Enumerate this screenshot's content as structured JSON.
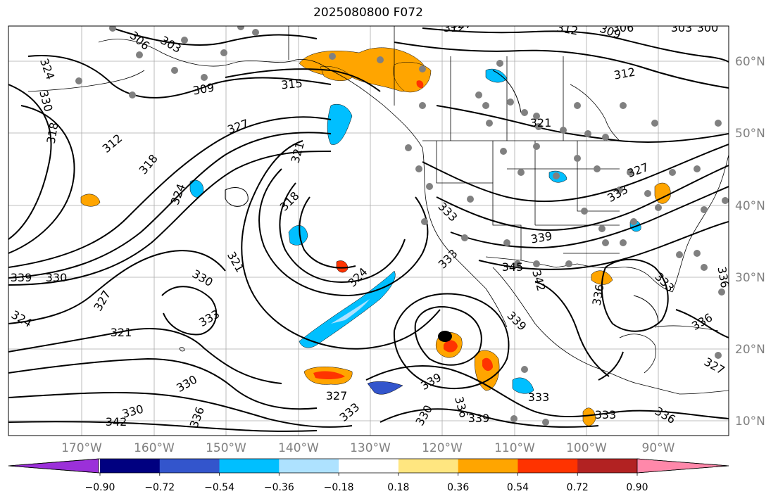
{
  "title": "2025080800 F072",
  "longitude_labels": [
    "170°W",
    "160°W",
    "150°W",
    "140°W",
    "130°W",
    "120°W",
    "110°W",
    "100°W",
    "90°W"
  ],
  "latitude_labels": [
    "60°N",
    "50°N",
    "40°N",
    "30°N",
    "20°N",
    "10°N"
  ],
  "colorbar": {
    "tick_labels": [
      "−0.90",
      "−0.72",
      "−0.54",
      "−0.36",
      "−0.18",
      "0.18",
      "0.36",
      "0.54",
      "0.72",
      "0.90"
    ],
    "colors": [
      "#9b30d9",
      "#000080",
      "#3355cc",
      "#00bfff",
      "#aee2ff",
      "#ffffff",
      "#ffe680",
      "#ffa500",
      "#ff3300",
      "#b22222",
      "#ff88aa"
    ]
  },
  "contour_labels": [
    "303",
    "306",
    "309",
    "312",
    "315",
    "318",
    "321",
    "324",
    "327",
    "330",
    "333",
    "336",
    "339",
    "342",
    "345"
  ],
  "map_labels": [
    {
      "text": "312"
    },
    {
      "text": "312"
    },
    {
      "text": "309"
    },
    {
      "text": "306"
    },
    {
      "text": "303"
    },
    {
      "text": "300"
    },
    {
      "text": "306"
    },
    {
      "text": "303"
    },
    {
      "text": "324"
    },
    {
      "text": "330"
    },
    {
      "text": "318"
    },
    {
      "text": "309"
    },
    {
      "text": "315"
    },
    {
      "text": "312"
    },
    {
      "text": "327"
    },
    {
      "text": "318"
    },
    {
      "text": "321"
    },
    {
      "text": "318"
    },
    {
      "text": "324"
    },
    {
      "text": "321"
    },
    {
      "text": "312"
    },
    {
      "text": "321"
    },
    {
      "text": "327"
    },
    {
      "text": "330"
    },
    {
      "text": "330"
    },
    {
      "text": "333"
    },
    {
      "text": "327"
    },
    {
      "text": "321"
    },
    {
      "text": "324"
    },
    {
      "text": "324"
    },
    {
      "text": "333"
    },
    {
      "text": "333"
    },
    {
      "text": "339"
    },
    {
      "text": "345"
    },
    {
      "text": "342"
    },
    {
      "text": "336"
    },
    {
      "text": "339"
    },
    {
      "text": "330"
    },
    {
      "text": "327"
    },
    {
      "text": "339"
    },
    {
      "text": "333"
    },
    {
      "text": "330"
    },
    {
      "text": "336"
    },
    {
      "text": "339"
    },
    {
      "text": "333"
    },
    {
      "text": "333"
    },
    {
      "text": "336"
    },
    {
      "text": "327"
    },
    {
      "text": "336"
    },
    {
      "text": "339"
    },
    {
      "text": "342"
    },
    {
      "text": "330"
    },
    {
      "text": "336"
    },
    {
      "text": "333"
    },
    {
      "text": "327"
    },
    {
      "text": "336"
    },
    {
      "text": "333"
    }
  ]
}
